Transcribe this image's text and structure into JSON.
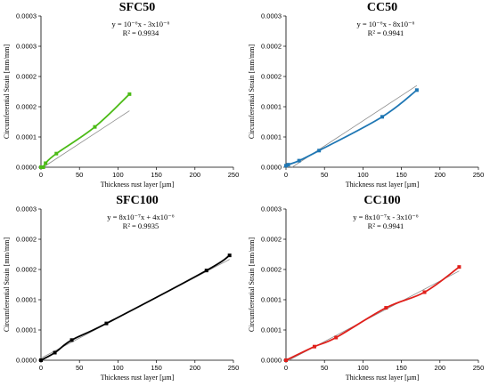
{
  "chart_data": [
    {
      "type": "line",
      "title": "SFC50",
      "xlabel": "Thickness rust layer [µm]",
      "ylabel": "Circumferential Strain [mm/mm]",
      "equation": "y = 10⁻⁶x - 3x10⁻⁶",
      "r2": "R² = 0.9934",
      "xlim": [
        0,
        250
      ],
      "ylim": [
        0,
        0.0003
      ],
      "xticks": [
        "0",
        "50",
        "100",
        "150",
        "200",
        "250"
      ],
      "yticks": [
        "0.0000",
        "0.0001",
        "0.0002",
        "0.0002",
        "0.0003",
        "0.0003"
      ],
      "color": "#4cbb17",
      "trendline": {
        "slope": 1e-06,
        "intercept": -3e-06
      },
      "series": [
        {
          "x": [
            0,
            3,
            6,
            20,
            70,
            115
          ],
          "y": [
            0.0,
            0.0,
            8e-06,
            2.7e-05,
            8e-05,
            0.000145
          ]
        }
      ]
    },
    {
      "type": "line",
      "title": "CC50",
      "xlabel": "Thickness rust layer [µm]",
      "ylabel": "Circumferential Strain [mm/mm]",
      "equation": "y = 10⁻⁶x - 8x10⁻⁶",
      "r2": "R² = 0.9941",
      "xlim": [
        0,
        250
      ],
      "ylim": [
        0,
        0.0003
      ],
      "xticks": [
        "0",
        "50",
        "100",
        "150",
        "200",
        "250"
      ],
      "yticks": [
        "0.0000",
        "0.0001",
        "0.0001",
        "0.0002",
        "0.0002",
        "0.0003"
      ],
      "color": "#1f77b4",
      "trendline": {
        "slope": 1e-06,
        "intercept": -8e-06
      },
      "series": [
        {
          "x": [
            0,
            3,
            17,
            43,
            125,
            170
          ],
          "y": [
            3e-06,
            5e-06,
            1.3e-05,
            3.3e-05,
            0.0001,
            0.000153
          ]
        }
      ]
    },
    {
      "type": "line",
      "title": "SFC100",
      "xlabel": "Thickness rust layer [µm]",
      "ylabel": "Circumferential Strain [mm/mm]",
      "equation": "y = 8x10⁻⁷x + 4x10⁻⁶",
      "r2": "R² = 0.9935",
      "xlim": [
        0,
        250
      ],
      "ylim": [
        0,
        0.0003
      ],
      "xticks": [
        "0",
        "50",
        "100",
        "150",
        "200",
        "250"
      ],
      "yticks": [
        "0.0000",
        "0.0001",
        "0.0001",
        "0.0002",
        "0.0002",
        "0.0003"
      ],
      "color": "#000000",
      "trendline": {
        "slope": 8e-07,
        "intercept": 4e-06
      },
      "series": [
        {
          "x": [
            0,
            18,
            40,
            85,
            215,
            245
          ],
          "y": [
            0.0,
            1.5e-05,
            4e-05,
            7.3e-05,
            0.000178,
            0.000208
          ]
        }
      ]
    },
    {
      "type": "line",
      "title": "CC100",
      "xlabel": "Thickness rust layer [µm]",
      "ylabel": "Circumferential Strain [mm/mm]",
      "equation": "y = 8x10⁻⁷x - 3x10⁻⁶",
      "r2": "R² = 0.9941",
      "xlim": [
        0,
        250
      ],
      "ylim": [
        0,
        0.0003
      ],
      "xticks": [
        "0",
        "50",
        "100",
        "150",
        "200",
        "250"
      ],
      "yticks": [
        "0.0000",
        "0.0001",
        "0.0001",
        "0.0002",
        "0.0002",
        "0.0003"
      ],
      "color": "#e0201b",
      "trendline": {
        "slope": 8e-07,
        "intercept": -3e-06
      },
      "series": [
        {
          "x": [
            0,
            37,
            65,
            130,
            180,
            225
          ],
          "y": [
            0.0,
            2.7e-05,
            4.5e-05,
            0.000104,
            0.000135,
            0.000185
          ]
        }
      ]
    }
  ]
}
